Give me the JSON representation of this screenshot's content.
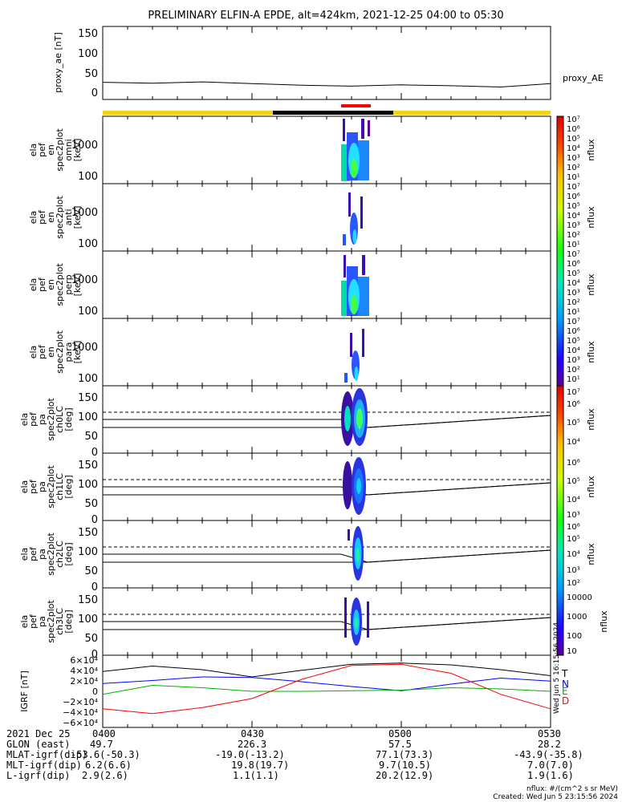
{
  "title": "PRELIMINARY ELFIN-A EPDE, alt=424km, 2021-12-25 04:00 to 05:30",
  "time_ticks": [
    "0400",
    "0430",
    "0500",
    "0530"
  ],
  "footer": {
    "rows": [
      {
        "label": "2021 Dec 25",
        "values": [
          "0400",
          "0430",
          "0500",
          "0530"
        ]
      },
      {
        "label": "GLON (east)",
        "values": [
          "49.7",
          "226.3",
          "57.5",
          "28.2"
        ]
      },
      {
        "label": "MLAT-igrf(dip)",
        "values": [
          "-53.6(-50.3)",
          "-19.0(-13.2)",
          "77.1(73.3)",
          "-43.9(-35.8)"
        ]
      },
      {
        "label": "MLT-igrf(dip)",
        "values": [
          "6.2(6.6)",
          "19.8(19.7)",
          "9.7(10.5)",
          "7.0(7.0)"
        ]
      },
      {
        "label": "L-igrf(dip)",
        "values": [
          "2.9(2.6)",
          "1.1(1.1)",
          "20.2(12.9)",
          "1.9(1.6)"
        ]
      }
    ],
    "units_note": "nflux: #/(cm^2 s sr MeV)",
    "created": "Created: Wed Jun  5 23:15:56 2024",
    "side_stamp": "Wed Jun  5 16:15:56 2024"
  },
  "colors": {
    "bar_yellow": "#f5d312",
    "bar_black": "#000000",
    "bar_red": "#ff0000",
    "T": "#000000",
    "N": "#0000ff",
    "E": "#00b000",
    "D": "#ff0000"
  },
  "chart_data": [
    {
      "type": "line",
      "title": "",
      "ylabel": "proxy_ae [nT]",
      "series_label": "proxy_AE",
      "ylim": [
        -10,
        160
      ],
      "yticks": [
        "150",
        "100",
        "50",
        "0"
      ],
      "x": [
        "04:00",
        "04:10",
        "04:20",
        "04:30",
        "04:40",
        "04:50",
        "05:00",
        "05:10",
        "05:20",
        "05:30"
      ],
      "values": [
        30,
        28,
        31,
        27,
        23,
        21,
        24,
        22,
        19,
        27
      ]
    },
    {
      "type": "heatmap",
      "ylabel": [
        "ela",
        "pef",
        "en",
        "spec2plot",
        "omni",
        "[keV]"
      ],
      "yticks": [
        "1000",
        "100"
      ],
      "colorbar_label": "nflux",
      "colorbar_ticks": [
        "10⁷",
        "10⁶",
        "10⁵",
        "10⁴",
        "10³",
        "10²",
        "10¹"
      ]
    },
    {
      "type": "heatmap",
      "ylabel": [
        "ela",
        "pef",
        "en",
        "spec2plot",
        "anti",
        "[keV]"
      ],
      "yticks": [
        "1000",
        "100"
      ],
      "colorbar_label": "nflux",
      "colorbar_ticks": [
        "10⁷",
        "10⁶",
        "10⁵",
        "10⁴",
        "10³",
        "10²",
        "10¹"
      ]
    },
    {
      "type": "heatmap",
      "ylabel": [
        "ela",
        "pef",
        "en",
        "spec2plot",
        "perp",
        "[keV]"
      ],
      "yticks": [
        "1000",
        "100"
      ],
      "colorbar_label": "nflux",
      "colorbar_ticks": [
        "10⁷",
        "10⁶",
        "10⁵",
        "10⁴",
        "10³",
        "10²",
        "10¹"
      ]
    },
    {
      "type": "heatmap",
      "ylabel": [
        "ela",
        "pef",
        "en",
        "spec2plot",
        "para",
        "[keV]"
      ],
      "yticks": [
        "1000",
        "100"
      ],
      "colorbar_label": "nflux",
      "colorbar_ticks": [
        "10⁷",
        "10⁶",
        "10⁵",
        "10⁴",
        "10³",
        "10²",
        "10¹"
      ]
    },
    {
      "type": "heatmap",
      "ylabel": [
        "ela",
        "pef",
        "pa",
        "spec2plot",
        "ch0LC",
        "[deg]"
      ],
      "yticks": [
        "150",
        "100",
        "50",
        "0"
      ],
      "colorbar_label": "nflux",
      "colorbar_ticks": [
        "10⁷",
        "10⁶",
        "10⁵",
        "10⁴"
      ]
    },
    {
      "type": "heatmap",
      "ylabel": [
        "ela",
        "pef",
        "pa",
        "spec2plot",
        "ch1LC",
        "[deg]"
      ],
      "yticks": [
        "150",
        "100",
        "50",
        "0"
      ],
      "colorbar_label": "nflux",
      "colorbar_ticks": [
        "10⁶",
        "10⁵",
        "10⁴",
        "10³"
      ]
    },
    {
      "type": "heatmap",
      "ylabel": [
        "ela",
        "pef",
        "pa",
        "spec2plot",
        "ch2LC",
        "[deg]"
      ],
      "yticks": [
        "150",
        "100",
        "50",
        "0"
      ],
      "colorbar_label": "nflux",
      "colorbar_ticks": [
        "10⁶",
        "10⁵",
        "10⁴",
        "10³",
        "10²"
      ]
    },
    {
      "type": "heatmap",
      "ylabel": [
        "ela",
        "pef",
        "pa",
        "spec2plot",
        "ch3LC",
        "[deg]"
      ],
      "yticks": [
        "150",
        "100",
        "50",
        "0"
      ],
      "colorbar_label": "nflux",
      "colorbar_ticks": [
        "10000",
        "1000",
        "100",
        "10"
      ]
    },
    {
      "type": "line",
      "ylabel": "IGRF [nT]",
      "yticks": [
        "6×10⁴",
        "4×10⁴",
        "2×10⁴",
        "0",
        "−2×10⁴",
        "−4×10⁴",
        "−6×10⁴"
      ],
      "ylim": [
        -60000,
        60000
      ],
      "x": [
        "04:00",
        "04:10",
        "04:20",
        "04:30",
        "04:40",
        "04:50",
        "05:00",
        "05:10",
        "05:20",
        "05:30"
      ],
      "series": [
        {
          "name": "T",
          "values": [
            33000,
            42000,
            36000,
            24000,
            35000,
            45000,
            47000,
            44000,
            36000,
            26000
          ]
        },
        {
          "name": "N",
          "values": [
            13000,
            18000,
            24000,
            23000,
            16000,
            8000,
            1000,
            12000,
            22000,
            17000
          ]
        },
        {
          "name": "E",
          "values": [
            -5000,
            10000,
            6000,
            0,
            0,
            1000,
            2000,
            6000,
            4000,
            0
          ]
        },
        {
          "name": "D",
          "values": [
            -29000,
            -37000,
            -27000,
            -12000,
            20000,
            43000,
            45000,
            30000,
            -5000,
            -29000
          ]
        }
      ]
    }
  ]
}
